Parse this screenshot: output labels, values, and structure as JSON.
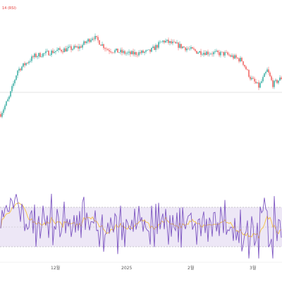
{
  "indicator_tag": "14 (RSI)",
  "chart_data": {
    "type": "candlestick",
    "x_tick_labels": [
      "12월",
      "2025",
      "2월",
      "3월"
    ],
    "price_reference_line": "horizontal line in price pane",
    "rsi_band": {
      "upper": 70,
      "lower": 30
    },
    "colors": {
      "up": "#26a69a",
      "down": "#ef5350",
      "rsi_line": "#7e57c2",
      "rsi_ma": "#f6c243",
      "rsi_band_fill": "#ede7f6"
    },
    "price_trend": [
      [
        0,
        0.15
      ],
      [
        0.03,
        0.3
      ],
      [
        0.06,
        0.55
      ],
      [
        0.12,
        0.68
      ],
      [
        0.2,
        0.73
      ],
      [
        0.28,
        0.76
      ],
      [
        0.33,
        0.86
      ],
      [
        0.38,
        0.74
      ],
      [
        0.46,
        0.7
      ],
      [
        0.53,
        0.72
      ],
      [
        0.58,
        0.82
      ],
      [
        0.63,
        0.78
      ],
      [
        0.7,
        0.72
      ],
      [
        0.8,
        0.7
      ],
      [
        0.86,
        0.64
      ],
      [
        0.89,
        0.48
      ],
      [
        0.92,
        0.4
      ],
      [
        0.95,
        0.55
      ],
      [
        0.97,
        0.42
      ],
      [
        1.0,
        0.48
      ]
    ]
  }
}
